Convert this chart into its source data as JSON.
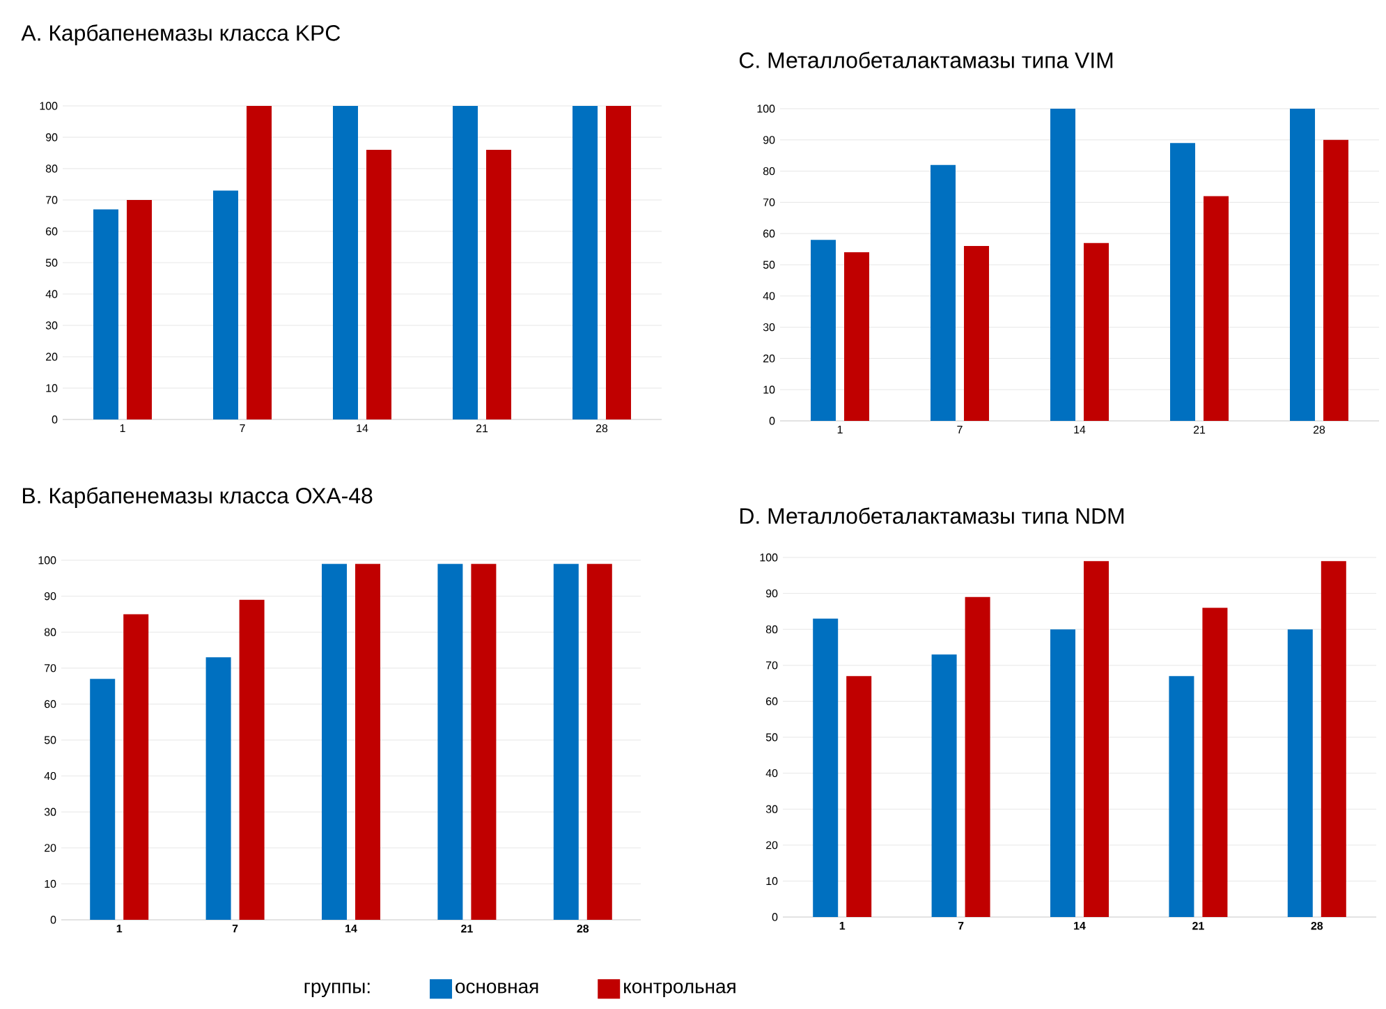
{
  "chart_data": [
    {
      "type": "bar",
      "title": "А. Карбапенемазы класса KPC",
      "categories": [
        "1",
        "7",
        "14",
        "21",
        "28"
      ],
      "ylim": [
        0,
        100
      ],
      "yticks": [
        0,
        10,
        20,
        30,
        40,
        50,
        60,
        70,
        80,
        90,
        100
      ],
      "grid": "y",
      "series": [
        {
          "color": "#0070c0",
          "values": [
            67,
            73,
            100,
            100,
            100
          ]
        },
        {
          "color": "#c00000",
          "values": [
            70,
            100,
            86,
            86,
            100
          ]
        }
      ]
    },
    {
      "type": "bar",
      "title": "С. Металлобеталактамазы типа VIM",
      "categories": [
        "1",
        "7",
        "14",
        "21",
        "28"
      ],
      "ylim": [
        0,
        100
      ],
      "yticks": [
        0,
        10,
        20,
        30,
        40,
        50,
        60,
        70,
        80,
        90,
        100
      ],
      "grid": "y",
      "series": [
        {
          "color": "#0070c0",
          "values": [
            58,
            82,
            100,
            89,
            100
          ]
        },
        {
          "color": "#c00000",
          "values": [
            54,
            56,
            57,
            72,
            90
          ]
        }
      ]
    },
    {
      "type": "bar",
      "title": "В. Карбапенемазы класса ОХА-48",
      "categories": [
        "1",
        "7",
        "14",
        "21",
        "28"
      ],
      "ylim": [
        0,
        100
      ],
      "yticks": [
        0,
        10,
        20,
        30,
        40,
        50,
        60,
        70,
        80,
        90,
        100
      ],
      "grid": "y",
      "series": [
        {
          "color": "#0070c0",
          "values": [
            67,
            73,
            99,
            99,
            99
          ]
        },
        {
          "color": "#c00000",
          "values": [
            85,
            89,
            99,
            99,
            99
          ]
        }
      ]
    },
    {
      "type": "bar",
      "title": "D. Металлобеталактамазы типа NDM",
      "categories": [
        "1",
        "7",
        "14",
        "21",
        "28"
      ],
      "ylim": [
        0,
        100
      ],
      "yticks": [
        0,
        10,
        20,
        30,
        40,
        50,
        60,
        70,
        80,
        90,
        100
      ],
      "grid": "y",
      "legend": "bottom",
      "legend_title": "группы:",
      "series": [
        {
          "name": "основная",
          "color": "#0070c0",
          "values": [
            83,
            73,
            80,
            67,
            80
          ]
        },
        {
          "name": "контрольная",
          "color": "#c00000",
          "values": [
            67,
            89,
            99,
            86,
            99
          ]
        }
      ]
    }
  ]
}
